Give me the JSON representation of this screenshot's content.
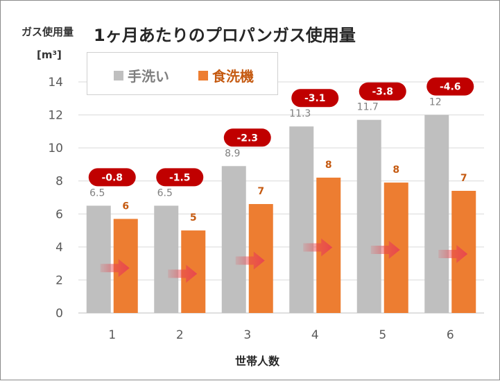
{
  "header": {
    "title": "1ヶ月あたりのプロパンガス使用量",
    "ylabel": "ガス使用量",
    "unit": "[m³]"
  },
  "chart_data": {
    "type": "bar",
    "title": "1ヶ月あたりのプロパンガス使用量",
    "xlabel": "世帯人数",
    "ylabel": "ガス使用量 [m³]",
    "categories": [
      "1",
      "2",
      "3",
      "4",
      "5",
      "6"
    ],
    "series": [
      {
        "name": "手洗い",
        "values": [
          6.5,
          6.5,
          8.9,
          11.3,
          11.7,
          12
        ],
        "labels": [
          "6.5",
          "6.5",
          "8.9",
          "11.3",
          "11.7",
          "12"
        ],
        "color": "#bfbfbf"
      },
      {
        "name": "食洗機",
        "values": [
          5.7,
          5.0,
          6.6,
          8.2,
          7.9,
          7.4
        ],
        "labels": [
          "6",
          "5",
          "7",
          "8",
          "8",
          "7"
        ],
        "color": "#ed7d31"
      }
    ],
    "differences": [
      "-0.8",
      "-1.5",
      "-2.3",
      "-3.1",
      "-3.8",
      "-4.6"
    ],
    "ylim": [
      0,
      14
    ],
    "yticks": [
      "0",
      "2",
      "4",
      "6",
      "8",
      "10",
      "12",
      "14"
    ],
    "grid": true,
    "legend_position": "top-left",
    "colors": {
      "badge": "#c00000",
      "arrow": "#e8474f",
      "handwash_label": "#7f7f7f",
      "dishwasher_label": "#c55a11"
    }
  }
}
